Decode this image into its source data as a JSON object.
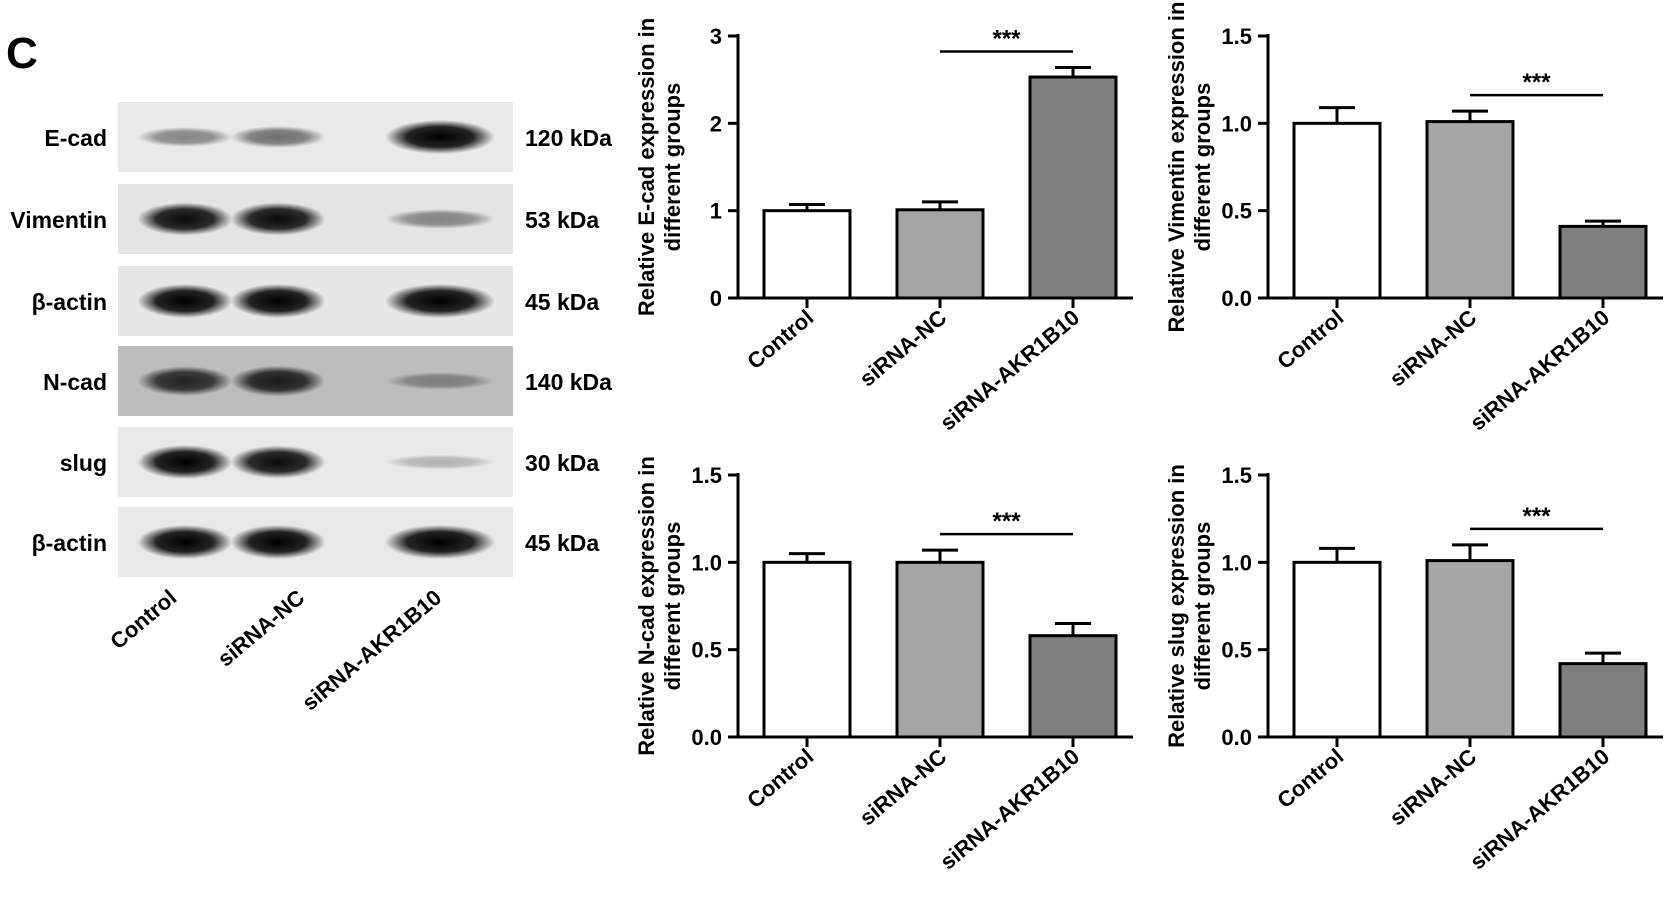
{
  "panel_label": "C",
  "blot": {
    "proteins": [
      {
        "name": "E-cad",
        "size": "120 kDa"
      },
      {
        "name": "Vimentin",
        "size": "53 kDa"
      },
      {
        "name": "β-actin",
        "size": "45 kDa"
      },
      {
        "name": "N-cad",
        "size": "140 kDa"
      },
      {
        "name": "slug",
        "size": "30 kDa"
      },
      {
        "name": "β-actin",
        "size": "45 kDa"
      }
    ],
    "lanes": [
      "Control",
      "siRNA-NC",
      "siRNA-AKR1B10"
    ],
    "band_intensity": [
      [
        0.35,
        0.45,
        1.0
      ],
      [
        0.95,
        0.95,
        0.35
      ],
      [
        1.0,
        1.0,
        1.0
      ],
      [
        0.8,
        0.85,
        0.25
      ],
      [
        1.0,
        0.95,
        0.12
      ],
      [
        1.0,
        1.0,
        1.0
      ]
    ],
    "band_background": [
      "#e9e9e9",
      "#e4e4e4",
      "#e6e6e6",
      "#bdbdbd",
      "#e9e9e9",
      "#e8e8e8"
    ]
  },
  "colors": {
    "Control": "#ffffff",
    "siRNA-NC": "#a6a6a6",
    "siRNA-AKR1B10": "#7f7f7f"
  },
  "chart_data": [
    {
      "type": "bar",
      "categories": [
        "Control",
        "siRNA-NC",
        "siRNA-AKR1B10"
      ],
      "values": [
        1.0,
        1.01,
        2.53
      ],
      "errors": [
        0.07,
        0.09,
        0.11
      ],
      "ylabel_lines": [
        "Relative E-cad expression in",
        "different groups"
      ],
      "ylim": [
        0,
        3
      ],
      "yticks": [
        "0",
        "1",
        "2",
        "3"
      ],
      "significance": {
        "from": 1,
        "to": 2,
        "label": "***"
      }
    },
    {
      "type": "bar",
      "categories": [
        "Control",
        "siRNA-NC",
        "siRNA-AKR1B10"
      ],
      "values": [
        1.0,
        1.01,
        0.41
      ],
      "errors": [
        0.09,
        0.06,
        0.03
      ],
      "ylabel_lines": [
        "Relative Vimentin expression in",
        "different groups"
      ],
      "ylim": [
        0,
        1.5
      ],
      "yticks": [
        "0.0",
        "0.5",
        "1.0",
        "1.5"
      ],
      "significance": {
        "from": 1,
        "to": 2,
        "label": "***"
      }
    },
    {
      "type": "bar",
      "categories": [
        "Control",
        "siRNA-NC",
        "siRNA-AKR1B10"
      ],
      "values": [
        1.0,
        1.0,
        0.58
      ],
      "errors": [
        0.05,
        0.07,
        0.07
      ],
      "ylabel_lines": [
        "Relative N-cad expression in",
        "different groups"
      ],
      "ylim": [
        0,
        1.5
      ],
      "yticks": [
        "0.0",
        "0.5",
        "1.0",
        "1.5"
      ],
      "significance": {
        "from": 1,
        "to": 2,
        "label": "***"
      }
    },
    {
      "type": "bar",
      "categories": [
        "Control",
        "siRNA-NC",
        "siRNA-AKR1B10"
      ],
      "values": [
        1.0,
        1.01,
        0.42
      ],
      "errors": [
        0.08,
        0.09,
        0.06
      ],
      "ylabel_lines": [
        "Relative slug expression in",
        "different groups"
      ],
      "ylim": [
        0,
        1.5
      ],
      "yticks": [
        "0.0",
        "0.5",
        "1.0",
        "1.5"
      ],
      "significance": {
        "from": 1,
        "to": 2,
        "label": "***"
      }
    }
  ]
}
